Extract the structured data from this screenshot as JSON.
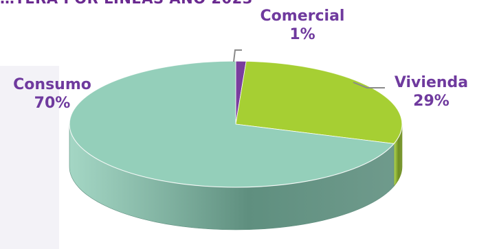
{
  "chart_data": {
    "type": "pie",
    "title": "…TERA POR LINEAS AÑO 2023",
    "categories": [
      "Comercial",
      "Vivienda",
      "Consumo"
    ],
    "values": [
      1,
      29,
      70
    ],
    "labels": [
      "1%",
      "29%",
      "70%"
    ],
    "colors": [
      "#7a3d9e",
      "#a6cf33",
      "#94cfba"
    ],
    "side_colors": [
      "#4e2a66",
      "#6f8f22",
      "#5f8f7f"
    ],
    "legend": "none",
    "style": "3d"
  }
}
